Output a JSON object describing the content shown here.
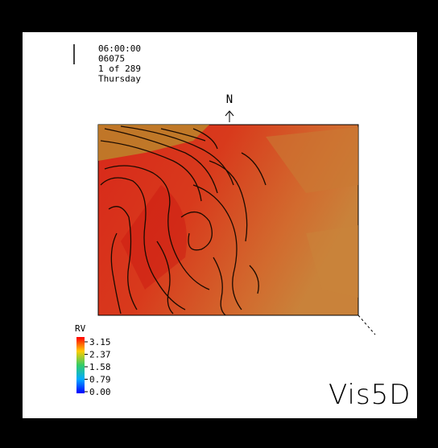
{
  "header": {
    "lines": [
      "06:00:00",
      "06075",
      "1 of 289",
      "Thursday"
    ]
  },
  "compass": {
    "label": "N"
  },
  "colorbar": {
    "title": "RV",
    "ticks": [
      "3.15",
      "2.37",
      "1.58",
      "0.79",
      "0.00"
    ]
  },
  "logo": {
    "text": "Vis5D"
  }
}
